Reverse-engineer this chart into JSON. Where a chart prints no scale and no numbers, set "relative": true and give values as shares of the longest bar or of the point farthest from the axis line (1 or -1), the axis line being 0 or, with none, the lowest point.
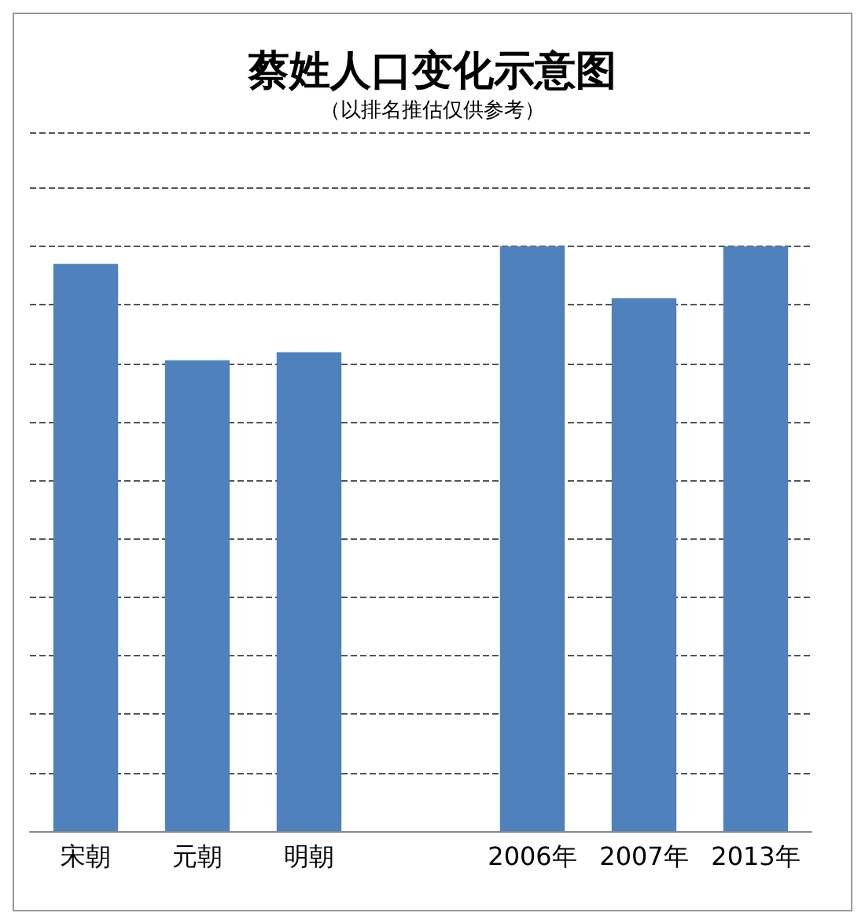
{
  "chart_data": {
    "type": "bar",
    "title": "蔡姓人口变化示意图",
    "subtitle": "（以排名推估仅供参考）",
    "categories": [
      "宋朝",
      "元朝",
      "明朝",
      null,
      "2006年",
      "2007年",
      "2013年"
    ],
    "values": [
      0.97,
      0.805,
      0.819,
      null,
      1,
      0.911,
      1
    ],
    "color": "#4f81bd",
    "relative": true,
    "grid": "y"
  }
}
